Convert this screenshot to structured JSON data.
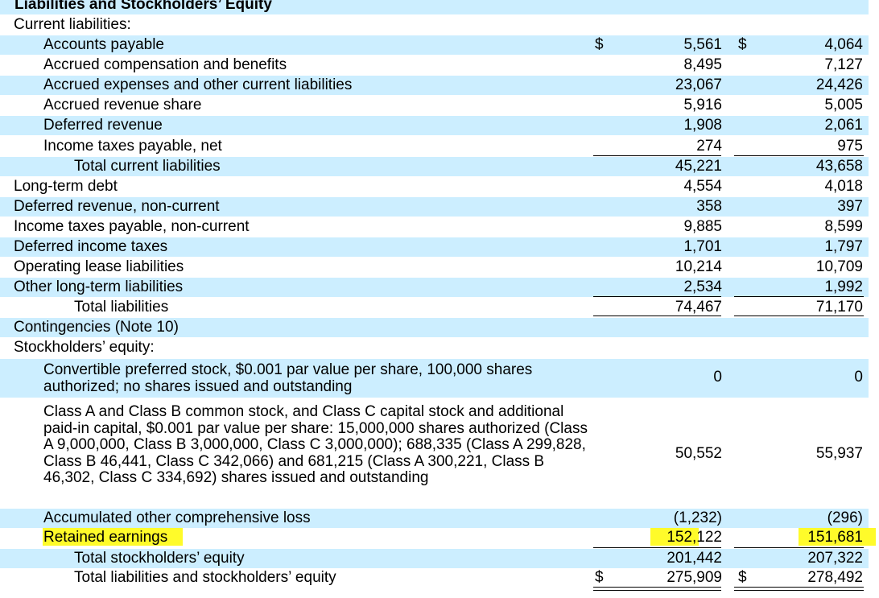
{
  "section_title": "Liabilities and Stockholders’ Equity",
  "current_liabilities_label": "Current liabilities:",
  "items": {
    "accounts_payable": {
      "label": "Accounts payable",
      "col1": "5,561",
      "col2": "4,064"
    },
    "accrued_comp": {
      "label": "Accrued compensation and benefits",
      "col1": "8,495",
      "col2": "7,127"
    },
    "accrued_expenses": {
      "label": "Accrued expenses and other current liabilities",
      "col1": "23,067",
      "col2": "24,426"
    },
    "accrued_revenue_share": {
      "label": "Accrued revenue share",
      "col1": "5,916",
      "col2": "5,005"
    },
    "deferred_revenue": {
      "label": "Deferred revenue",
      "col1": "1,908",
      "col2": "2,061"
    },
    "income_taxes_payable": {
      "label": "Income taxes payable, net",
      "col1": "274",
      "col2": "975"
    },
    "total_current_liabilities": {
      "label": "Total current liabilities",
      "col1": "45,221",
      "col2": "43,658"
    },
    "long_term_debt": {
      "label": "Long-term debt",
      "col1": "4,554",
      "col2": "4,018"
    },
    "deferred_revenue_noncurrent": {
      "label": "Deferred revenue, non-current",
      "col1": "358",
      "col2": "397"
    },
    "income_taxes_noncurrent": {
      "label": "Income taxes payable, non-current",
      "col1": "9,885",
      "col2": "8,599"
    },
    "deferred_income_taxes": {
      "label": "Deferred income taxes",
      "col1": "1,701",
      "col2": "1,797"
    },
    "operating_lease": {
      "label": "Operating lease liabilities",
      "col1": "10,214",
      "col2": "10,709"
    },
    "other_long_term": {
      "label": "Other long-term liabilities",
      "col1": "2,534",
      "col2": "1,992"
    },
    "total_liabilities": {
      "label": "Total liabilities",
      "col1": "74,467",
      "col2": "71,170"
    },
    "preferred_stock": {
      "label": "Convertible preferred stock, $0.001 par value per share, 100,000 shares authorized; no shares issued and outstanding",
      "col1": "0",
      "col2": "0"
    },
    "common_stock": {
      "label": "Class A and Class B common stock, and Class C capital stock and additional paid-in capital, $0.001 par value per share: 15,000,000 shares authorized (Class A 9,000,000, Class B 3,000,000, Class C 3,000,000); 688,335 (Class A 299,828, Class B 46,441, Class C 342,066) and 681,215 (Class A 300,221, Class B 46,302, Class C 334,692) shares issued and outstanding",
      "col1": "50,552",
      "col2": "55,937"
    },
    "aoci": {
      "label": "Accumulated other comprehensive loss",
      "col1": "(1,232)",
      "col2": "(296)"
    },
    "retained_earnings": {
      "label": "Retained earnings",
      "col1": "152,122",
      "col2": "151,681"
    },
    "total_equity": {
      "label": "Total stockholders’ equity",
      "col1": "201,442",
      "col2": "207,322"
    },
    "total_liabilities_equity": {
      "label": "Total liabilities and stockholders’ equity",
      "col1": "275,909",
      "col2": "278,492"
    }
  },
  "contingencies_label": "Contingencies (Note 10)",
  "stockholders_equity_label": "Stockholders’ equity:",
  "currency_symbol": "$",
  "highlight_color": "#fffb2a",
  "row_shade_color": "#cceeff"
}
